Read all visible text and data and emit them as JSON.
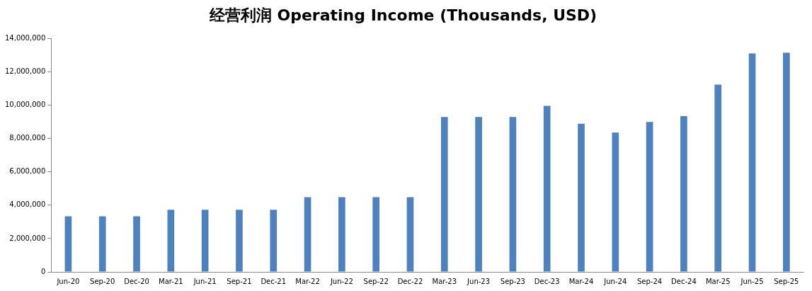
{
  "chart_data": {
    "type": "bar",
    "title": "经营利润 Operating Income (Thousands, USD)",
    "categories": [
      "Jun-20",
      "Sep-20",
      "Dec-20",
      "Mar-21",
      "Jun-21",
      "Sep-21",
      "Dec-21",
      "Mar-22",
      "Jun-22",
      "Sep-22",
      "Dec-22",
      "Mar-23",
      "Jun-23",
      "Sep-23",
      "Dec-23",
      "Mar-24",
      "Jun-24",
      "Sep-24",
      "Dec-24",
      "Mar-25",
      "Jun-25",
      "Sep-25"
    ],
    "values": [
      3330000,
      3330000,
      3330000,
      3730000,
      3730000,
      3730000,
      3730000,
      4480000,
      4480000,
      4480000,
      4480000,
      9290000,
      9290000,
      9290000,
      9960000,
      8890000,
      8360000,
      8990000,
      9340000,
      11230000,
      13100000,
      13150000
    ],
    "color": "#4f81bd",
    "ylim": [
      0,
      14000000
    ],
    "yticks": [
      {
        "value": 0,
        "label": "0"
      },
      {
        "value": 2000000,
        "label": "2,000,000"
      },
      {
        "value": 4000000,
        "label": "4,000,000"
      },
      {
        "value": 6000000,
        "label": "6,000,000"
      },
      {
        "value": 8000000,
        "label": "8,000,000"
      },
      {
        "value": 10000000,
        "label": "10,000,000"
      },
      {
        "value": 12000000,
        "label": "12,000,000"
      },
      {
        "value": 14000000,
        "label": "14,000,000"
      }
    ],
    "grid": false,
    "legend": false
  }
}
